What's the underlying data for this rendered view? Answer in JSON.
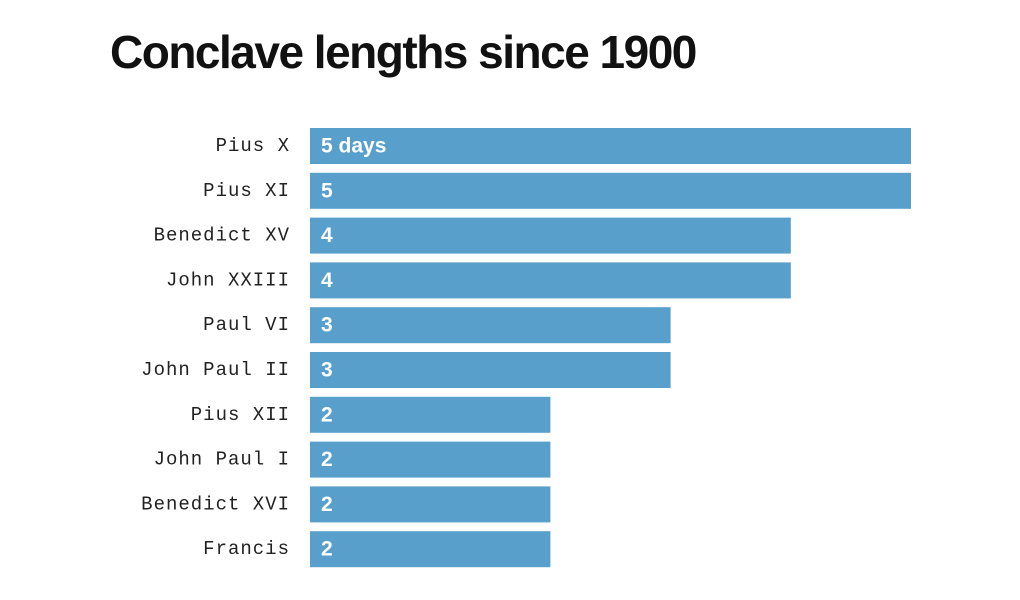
{
  "chart_data": {
    "type": "bar",
    "orientation": "horizontal",
    "title": "Conclave lengths since 1900",
    "categories": [
      "Pius X",
      "Pius XI",
      "Benedict XV",
      "John XXIII",
      "Paul VI",
      "John Paul II",
      "Pius XII",
      "John Paul I",
      "Benedict XVI",
      "Francis"
    ],
    "values": [
      5,
      5,
      4,
      4,
      3,
      3,
      2,
      2,
      2,
      2
    ],
    "value_labels": [
      "5 days",
      "5",
      "4",
      "4",
      "3",
      "3",
      "2",
      "2",
      "2",
      "2"
    ],
    "color": "#589fcc"
  }
}
